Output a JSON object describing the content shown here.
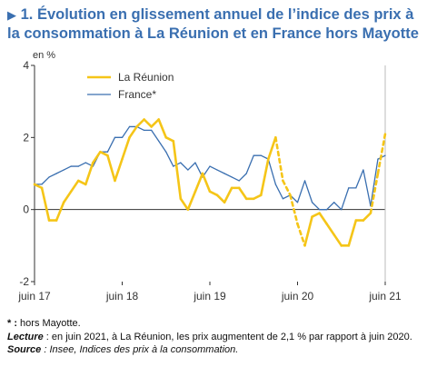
{
  "title": {
    "marker": "▶",
    "text": "1. Évolution en glissement annuel de l’indice des prix à la consommation à La Réunion et en France hors Mayotte"
  },
  "chart_data": {
    "type": "line",
    "ylabel": "en %",
    "ylim": [
      -2,
      4
    ],
    "yticks": [
      -2,
      0,
      2,
      4
    ],
    "xlim": [
      "2017-06",
      "2021-06"
    ],
    "x_tick_labels": [
      "juin 17",
      "juin 18",
      "juin 19",
      "juin 20",
      "juin 21"
    ],
    "legend_position": "top-left",
    "grid": false,
    "x": [
      "2017-06",
      "2017-07",
      "2017-08",
      "2017-09",
      "2017-10",
      "2017-11",
      "2017-12",
      "2018-01",
      "2018-02",
      "2018-03",
      "2018-04",
      "2018-05",
      "2018-06",
      "2018-07",
      "2018-08",
      "2018-09",
      "2018-10",
      "2018-11",
      "2018-12",
      "2019-01",
      "2019-02",
      "2019-03",
      "2019-04",
      "2019-05",
      "2019-06",
      "2019-07",
      "2019-08",
      "2019-09",
      "2019-10",
      "2019-11",
      "2019-12",
      "2020-01",
      "2020-02",
      "2020-03",
      "2020-04",
      "2020-05",
      "2020-06",
      "2020-07",
      "2020-08",
      "2020-09",
      "2020-10",
      "2020-11",
      "2020-12",
      "2021-01",
      "2021-02",
      "2021-03",
      "2021-04",
      "2021-05",
      "2021-06"
    ],
    "series": [
      {
        "name": "La Réunion",
        "color": "#f5c518",
        "values": [
          0.7,
          0.6,
          -0.3,
          -0.3,
          0.2,
          0.5,
          0.8,
          0.7,
          1.3,
          1.6,
          1.5,
          0.8,
          1.4,
          2.0,
          2.3,
          2.5,
          2.3,
          2.5,
          2.0,
          1.9,
          0.3,
          0.0,
          0.5,
          1.0,
          0.5,
          0.4,
          0.2,
          0.6,
          0.6,
          0.3,
          0.3,
          0.4,
          1.4,
          2.0,
          0.8,
          0.4,
          -0.4,
          -1.0,
          -0.2,
          -0.1,
          -0.4,
          -0.7,
          -1.0,
          -1.0,
          -0.3,
          -0.3,
          -0.1,
          1.0,
          2.1
        ],
        "dashed_segments": [
          [
            33,
            37
          ],
          [
            46,
            48
          ]
        ]
      },
      {
        "name": "France*",
        "color": "#3a6fb0",
        "values": [
          0.7,
          0.7,
          0.9,
          1.0,
          1.1,
          1.2,
          1.2,
          1.3,
          1.2,
          1.6,
          1.6,
          2.0,
          2.0,
          2.3,
          2.3,
          2.2,
          2.2,
          1.9,
          1.6,
          1.2,
          1.3,
          1.1,
          1.3,
          0.9,
          1.2,
          1.1,
          1.0,
          0.9,
          0.8,
          1.0,
          1.5,
          1.5,
          1.4,
          0.7,
          0.3,
          0.4,
          0.2,
          0.8,
          0.2,
          0.0,
          0.0,
          0.2,
          0.0,
          0.6,
          0.6,
          1.1,
          0.1,
          1.4,
          1.5
        ]
      }
    ]
  },
  "notes": {
    "footnote_mark": "* :",
    "footnote_text": " hors Mayotte.",
    "lecture_label": "Lecture",
    "lecture_text": " : en juin 2021, à La Réunion, les prix augmentent de 2,1 % par rapport à juin 2020.",
    "source_label": "Source",
    "source_text": " : Insee, Indices des prix à la consommation."
  }
}
